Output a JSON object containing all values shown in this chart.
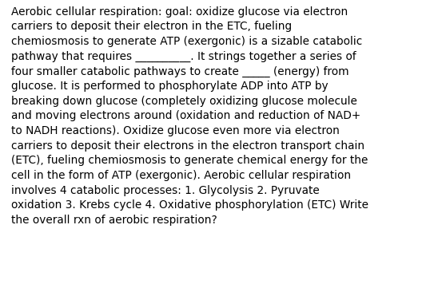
{
  "background_color": "#ffffff",
  "text_color": "#000000",
  "font_size": 9.8,
  "font_family": "DejaVu Sans",
  "lines": [
    "Aerobic cellular respiration: goal: oxidize glucose via electron",
    "carriers to deposit their electron in the ETC, fueling",
    "chemiosmosis to generate ATP (exergonic) is a sizable catabolic",
    "pathway that requires __________. It strings together a series of",
    "four smaller catabolic pathways to create _____ (energy) from",
    "glucose. It is performed to phosphorylate ADP into ATP by",
    "breaking down glucose (completely oxidizing glucose molecule",
    "and moving electrons around (oxidation and reduction of NAD+",
    "to NADH reactions). Oxidize glucose even more via electron",
    "carriers to deposit their electrons in the electron transport chain",
    "(ETC), fueling chemiosmosis to generate chemical energy for the",
    "cell in the form of ATP (exergonic). Aerobic cellular respiration",
    "involves 4 catabolic processes: 1. Glycolysis 2. Pyruvate",
    "oxidation 3. Krebs cycle 4. Oxidative phosphorylation (ETC) Write",
    "the overall rxn of aerobic respiration?"
  ],
  "fig_width": 5.58,
  "fig_height": 3.56,
  "dpi": 100
}
